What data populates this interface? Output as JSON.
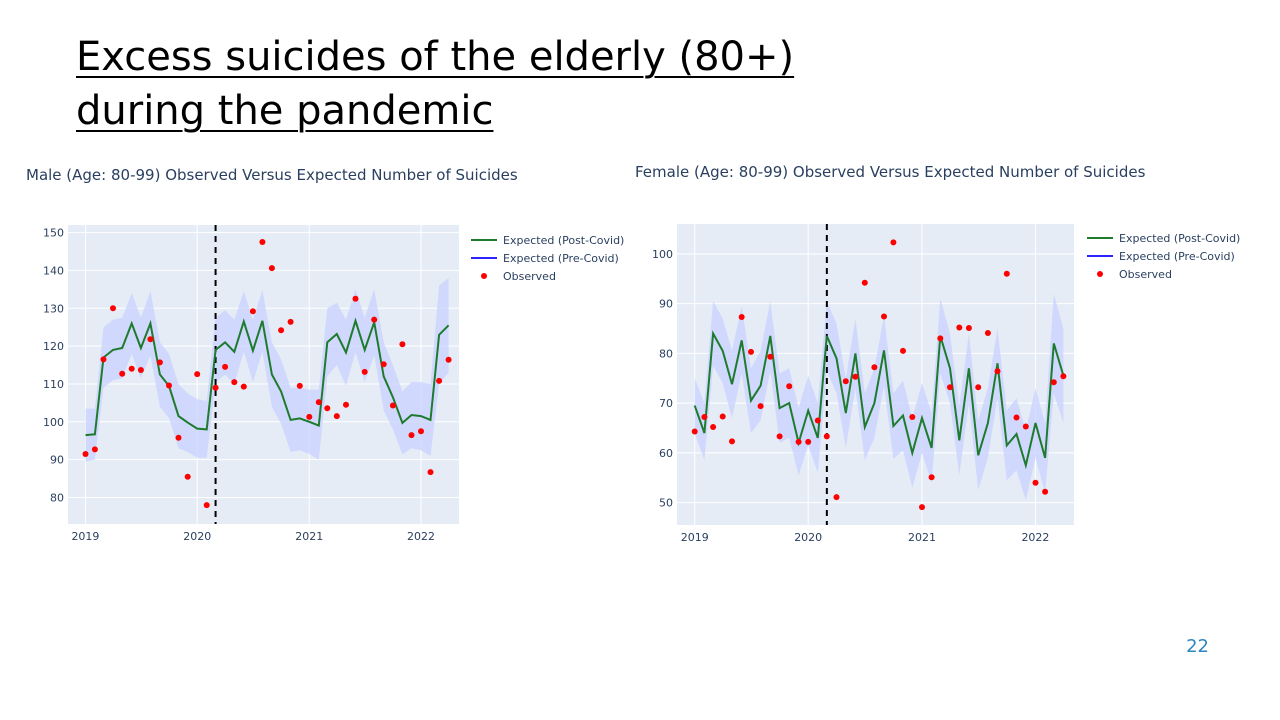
{
  "slide": {
    "title_line1": "Excess suicides of the elderly (80+)",
    "title_line2": "during the pandemic",
    "page_number": "22"
  },
  "colors": {
    "plot_bg": "#e5ecf6",
    "band": "#c8d2ff",
    "expected_post": "#1e7b2d",
    "expected_pre": "#2c24ff",
    "observed": "#ff0000",
    "axis_text": "#2a3f5f"
  },
  "chart_data": [
    {
      "type": "line",
      "title": "Male (Age: 80-99) Observed Versus Expected Number of Suicides",
      "x_ticks": [
        "2019",
        "2020",
        "2021",
        "2022"
      ],
      "y_ticks": [
        "80",
        "90",
        "100",
        "110",
        "120",
        "130",
        "140",
        "150"
      ],
      "xlim": [
        "2018-11-05",
        "2022-05-05"
      ],
      "ylim": [
        73,
        152
      ],
      "covid_line": "2020-03",
      "legend": [
        "Expected (Post-Covid)",
        "Expected (Pre-Covid)",
        "Observed"
      ],
      "legend_position": "top-right",
      "x": [
        "2019-01",
        "2019-02",
        "2019-03",
        "2019-04",
        "2019-05",
        "2019-06",
        "2019-07",
        "2019-08",
        "2019-09",
        "2019-10",
        "2019-11",
        "2019-12",
        "2020-01",
        "2020-02",
        "2020-03",
        "2020-04",
        "2020-05",
        "2020-06",
        "2020-07",
        "2020-08",
        "2020-09",
        "2020-10",
        "2020-11",
        "2020-12",
        "2021-01",
        "2021-02",
        "2021-03",
        "2021-04",
        "2021-05",
        "2021-06",
        "2021-07",
        "2021-08",
        "2021-09",
        "2021-10",
        "2021-11",
        "2021-12",
        "2022-01",
        "2022-02",
        "2022-03",
        "2022-04"
      ],
      "series": [
        {
          "name": "Expected (Post-Covid)",
          "values": [
            96.5,
            96.7,
            117,
            119,
            119.5,
            126,
            119.5,
            126,
            112.5,
            109.5,
            101.5,
            99.8,
            98.2,
            98,
            119,
            121,
            118.5,
            126.5,
            118.8,
            126.7,
            112.5,
            108,
            100.5,
            100.9,
            100,
            99,
            121,
            123.2,
            118.3,
            126.7,
            119,
            126.3,
            112,
            106.5,
            99.7,
            101.8,
            101.5,
            100.5,
            123,
            125.5
          ],
          "upper": [
            103.5,
            103.5,
            125,
            127,
            127.5,
            134,
            127.5,
            134.5,
            121,
            118,
            110,
            107.5,
            106,
            105.5,
            127.5,
            129.5,
            127,
            134.5,
            127,
            134.8,
            121,
            116.5,
            109,
            109,
            108.5,
            108.5,
            130,
            131.5,
            127,
            135,
            127.5,
            135,
            121,
            115,
            108,
            110.5,
            110.5,
            110,
            136,
            138
          ],
          "lower": [
            89.5,
            90,
            109,
            111,
            111.5,
            118,
            111.5,
            117.5,
            104,
            101,
            93,
            92,
            90.5,
            90.5,
            110.5,
            112.5,
            110,
            118.5,
            110.5,
            118.5,
            104,
            99.5,
            92,
            92.5,
            91.5,
            90,
            112,
            115,
            109.5,
            118.4,
            110.5,
            117.6,
            103,
            98,
            91.4,
            93,
            92.5,
            91,
            110,
            113
          ]
        },
        {
          "name": "Observed",
          "values": [
            91.5,
            92.7,
            116.5,
            130,
            112.7,
            114,
            113.7,
            121.8,
            115.7,
            109.6,
            95.8,
            85.5,
            112.6,
            78,
            109,
            114.5,
            110.5,
            109.3,
            129.2,
            147.5,
            140.6,
            124.2,
            126.4,
            109.5,
            101.3,
            105.2,
            103.6,
            101.5,
            104.5,
            132.5,
            113.2,
            127,
            115.2,
            104.3,
            120.5,
            96.5,
            97.5,
            86.7,
            110.8,
            116.4
          ]
        }
      ]
    },
    {
      "type": "line",
      "title": "Female (Age: 80-99) Observed Versus Expected Number of Suicides",
      "x_ticks": [
        "2019",
        "2020",
        "2021",
        "2022"
      ],
      "y_ticks": [
        "50",
        "60",
        "70",
        "80",
        "90",
        "100"
      ],
      "xlim": [
        "2018-11-05",
        "2022-05-05"
      ],
      "ylim": [
        45.5,
        106
      ],
      "covid_line": "2020-03",
      "legend": [
        "Expected (Post-Covid)",
        "Expected (Pre-Covid)",
        "Observed"
      ],
      "legend_position": "top-right",
      "x": [
        "2019-01",
        "2019-02",
        "2019-03",
        "2019-04",
        "2019-05",
        "2019-06",
        "2019-07",
        "2019-08",
        "2019-09",
        "2019-10",
        "2019-11",
        "2019-12",
        "2020-01",
        "2020-02",
        "2020-03",
        "2020-04",
        "2020-05",
        "2020-06",
        "2020-07",
        "2020-08",
        "2020-09",
        "2020-10",
        "2020-11",
        "2020-12",
        "2021-01",
        "2021-02",
        "2021-03",
        "2021-04",
        "2021-05",
        "2021-06",
        "2021-07",
        "2021-08",
        "2021-09",
        "2021-10",
        "2021-11",
        "2021-12",
        "2022-01",
        "2022-02",
        "2022-03",
        "2022-04"
      ],
      "series": [
        {
          "name": "Expected (Post-Covid)",
          "values": [
            69.5,
            64,
            84,
            80.5,
            73.8,
            82.6,
            70.5,
            73.5,
            83.5,
            69,
            70,
            62,
            68.5,
            63,
            83.5,
            79,
            68,
            80,
            65.2,
            70,
            80.6,
            65.4,
            67.5,
            60,
            67,
            61,
            83.5,
            77,
            62.5,
            77,
            59.5,
            66,
            78,
            61.5,
            63.8,
            57.5,
            66,
            59,
            82,
            75.5
          ],
          "upper": [
            75,
            70,
            90.5,
            87,
            80.5,
            89.5,
            77,
            80.5,
            90.5,
            76,
            77,
            69,
            75.5,
            70,
            90.5,
            86,
            75,
            87,
            72,
            77,
            87.5,
            72,
            74.5,
            67,
            74,
            68,
            91,
            84,
            69.5,
            84,
            66.5,
            73,
            85,
            68.5,
            71,
            64.5,
            73,
            66,
            92,
            85
          ],
          "lower": [
            64,
            58.5,
            77.5,
            74,
            67,
            76,
            64,
            66.5,
            76.5,
            62,
            63,
            55.5,
            61.5,
            56,
            76.5,
            72,
            61,
            73,
            58.5,
            63,
            73.5,
            58.8,
            60.5,
            53,
            60,
            54,
            76,
            70,
            55.5,
            70,
            52.5,
            59,
            71,
            54.5,
            56.5,
            50.5,
            59,
            52,
            72,
            66
          ]
        },
        {
          "name": "Observed",
          "values": [
            64.3,
            67.2,
            65.2,
            67.3,
            62.3,
            87.3,
            80.3,
            69.4,
            79.3,
            63.3,
            73.4,
            62.2,
            62.2,
            66.5,
            63.3,
            51.1,
            74.4,
            75.3,
            94.2,
            77.2,
            87.4,
            102.3,
            80.5,
            67.2,
            49.1,
            55.1,
            83,
            73.2,
            85.2,
            85.1,
            73.2,
            84.1,
            76.4,
            96,
            67.1,
            65.3,
            54,
            52.2,
            74.2,
            75.4
          ]
        }
      ]
    }
  ]
}
